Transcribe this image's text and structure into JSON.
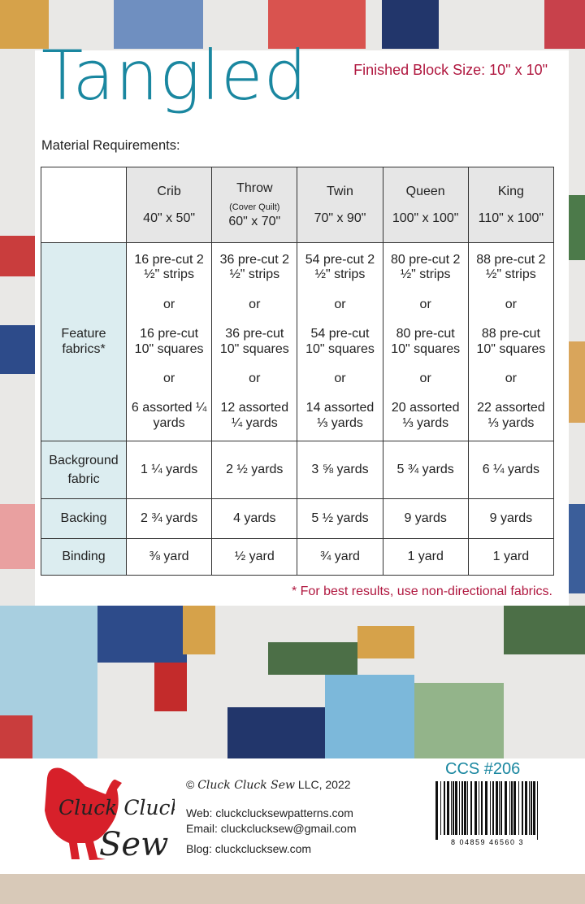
{
  "header": {
    "title": "Tangled",
    "block_size": "Finished Block Size:  10\" x 10\"",
    "section_label": "Material Requirements:"
  },
  "table": {
    "columns": [
      {
        "name": "Crib",
        "note": "",
        "size": "40\" x 50\""
      },
      {
        "name": "Throw",
        "note": "(Cover Quilt)",
        "size": "60\" x 70\""
      },
      {
        "name": "Twin",
        "note": "",
        "size": "70\" x 90\""
      },
      {
        "name": "Queen",
        "note": "",
        "size": "100\" x 100\""
      },
      {
        "name": "King",
        "note": "",
        "size": "110\" x 100\""
      }
    ],
    "or_label": "or",
    "rows": [
      {
        "label": "Feature fabrics*",
        "cells": [
          [
            "16 pre-cut 2 ½\" strips",
            "16 pre-cut 10\" squares",
            "6 assorted ¼ yards"
          ],
          [
            "36 pre-cut 2 ½\" strips",
            "36 pre-cut 10\" squares",
            "12 assorted ¼ yards"
          ],
          [
            "54 pre-cut 2 ½\" strips",
            "54 pre-cut 10\" squares",
            "14 assorted ⅓ yards"
          ],
          [
            "80 pre-cut 2 ½\" strips",
            "80 pre-cut 10\" squares",
            "20 assorted ⅓ yards"
          ],
          [
            "88 pre-cut 2 ½\" strips",
            "88 pre-cut 10\" squares",
            "22 assorted ⅓ yards"
          ]
        ]
      },
      {
        "label": "Background fabric",
        "cells": [
          "1 ¼ yards",
          "2 ½ yards",
          "3 ⅝ yards",
          "5 ¾ yards",
          "6 ¼ yards"
        ]
      },
      {
        "label": "Backing",
        "cells": [
          "2 ¾ yards",
          "4 yards",
          "5 ½ yards",
          "9 yards",
          "9 yards"
        ]
      },
      {
        "label": "Binding",
        "cells": [
          "⅜ yard",
          "½ yard",
          "¾ yard",
          "1 yard",
          "1 yard"
        ]
      }
    ]
  },
  "note": "* For best results, use non-directional fabrics.",
  "footer": {
    "logo_text": "Cluck Cluck Sew",
    "copyright_symbol": "©",
    "brand": "Cluck Cluck Sew",
    "copyright_rest": " LLC, 2022",
    "web": "Web: cluckclucksewpatterns.com",
    "email": "Email: cluckclucksew@gmail.com",
    "blog": "Blog:  cluckclucksew.com",
    "pattern_number": "CCS #206",
    "barcode_digits": "8 04859 46560 3"
  },
  "colors": {
    "title": "#1a87a0",
    "accent": "#b0173f",
    "label_bg": "#dcedf0",
    "header_bg": "#e6e6e6",
    "logo_red": "#d7202a"
  }
}
